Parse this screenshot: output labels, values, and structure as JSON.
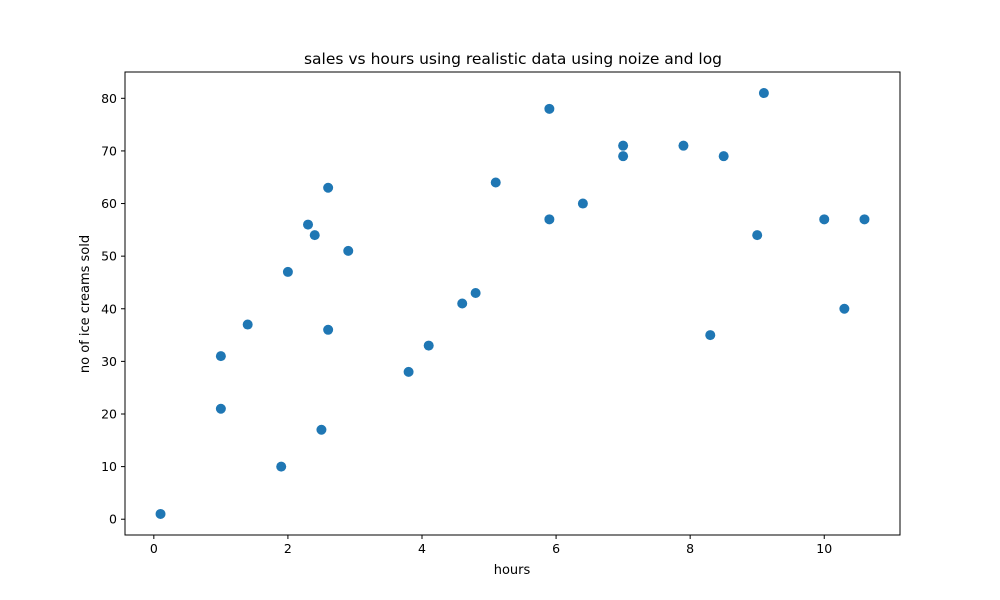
{
  "chart_data": {
    "type": "scatter",
    "title": "sales vs hours using realistic data using noize and log",
    "xlabel": "hours",
    "ylabel": "no of ice creams sold",
    "xlim": [
      -0.43,
      11.13
    ],
    "ylim": [
      -3,
      85
    ],
    "xticks": [
      0,
      2,
      4,
      6,
      8,
      10
    ],
    "yticks": [
      0,
      10,
      20,
      30,
      40,
      50,
      60,
      70,
      80
    ],
    "grid": false,
    "marker_color": "#1f77b4",
    "points": [
      {
        "x": 0.1,
        "y": 1
      },
      {
        "x": 1.0,
        "y": 31
      },
      {
        "x": 1.0,
        "y": 21
      },
      {
        "x": 1.4,
        "y": 37
      },
      {
        "x": 1.9,
        "y": 10
      },
      {
        "x": 2.0,
        "y": 47
      },
      {
        "x": 2.3,
        "y": 56
      },
      {
        "x": 2.4,
        "y": 54
      },
      {
        "x": 2.5,
        "y": 17
      },
      {
        "x": 2.6,
        "y": 63
      },
      {
        "x": 2.6,
        "y": 36
      },
      {
        "x": 2.9,
        "y": 51
      },
      {
        "x": 3.8,
        "y": 28
      },
      {
        "x": 4.1,
        "y": 33
      },
      {
        "x": 4.6,
        "y": 41
      },
      {
        "x": 4.8,
        "y": 43
      },
      {
        "x": 5.1,
        "y": 64
      },
      {
        "x": 5.9,
        "y": 78
      },
      {
        "x": 5.9,
        "y": 57
      },
      {
        "x": 6.4,
        "y": 60
      },
      {
        "x": 7.0,
        "y": 71
      },
      {
        "x": 7.0,
        "y": 69
      },
      {
        "x": 7.9,
        "y": 71
      },
      {
        "x": 8.3,
        "y": 35
      },
      {
        "x": 8.5,
        "y": 69
      },
      {
        "x": 9.0,
        "y": 54
      },
      {
        "x": 9.1,
        "y": 81
      },
      {
        "x": 10.0,
        "y": 57
      },
      {
        "x": 10.3,
        "y": 40
      },
      {
        "x": 10.6,
        "y": 57
      }
    ]
  }
}
